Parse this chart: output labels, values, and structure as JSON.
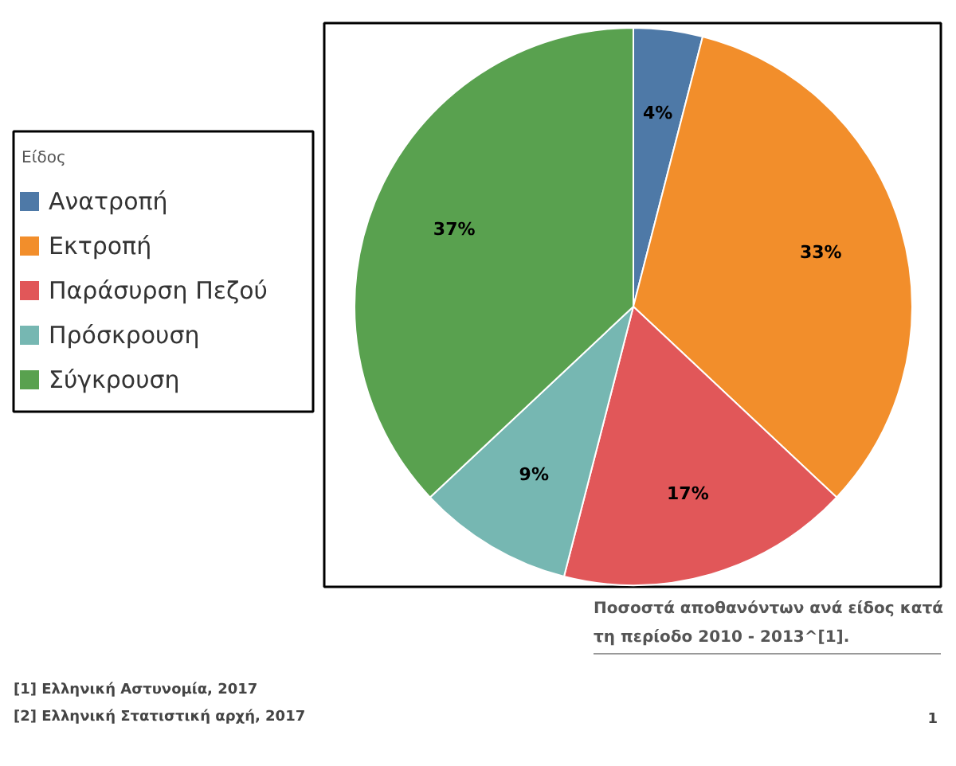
{
  "chart_data": {
    "type": "pie",
    "legend_title": "Είδος",
    "legend": "left",
    "categories": [
      "Ανατροπή",
      "Εκτροπή",
      "Παράσυρση Πεζού",
      "Πρόσκρουση",
      "Σύγκρουση"
    ],
    "values": [
      4,
      33,
      17,
      9,
      37
    ],
    "colors": [
      "#4e79a7",
      "#f28e2b",
      "#e15759",
      "#76b7b2",
      "#59a14f"
    ],
    "value_labels": [
      "4%",
      "33%",
      "17%",
      "9%",
      "37%"
    ],
    "annotations": [
      "Ποσοστά αποθανόντων ανά είδος κατά τη περίοδο 2010 - 2013^[1].",
      "[1] Ελληνική Αστυνομία, 2017",
      "[2] Ελληνική Στατιστική αρχή, 2017",
      "1"
    ]
  }
}
